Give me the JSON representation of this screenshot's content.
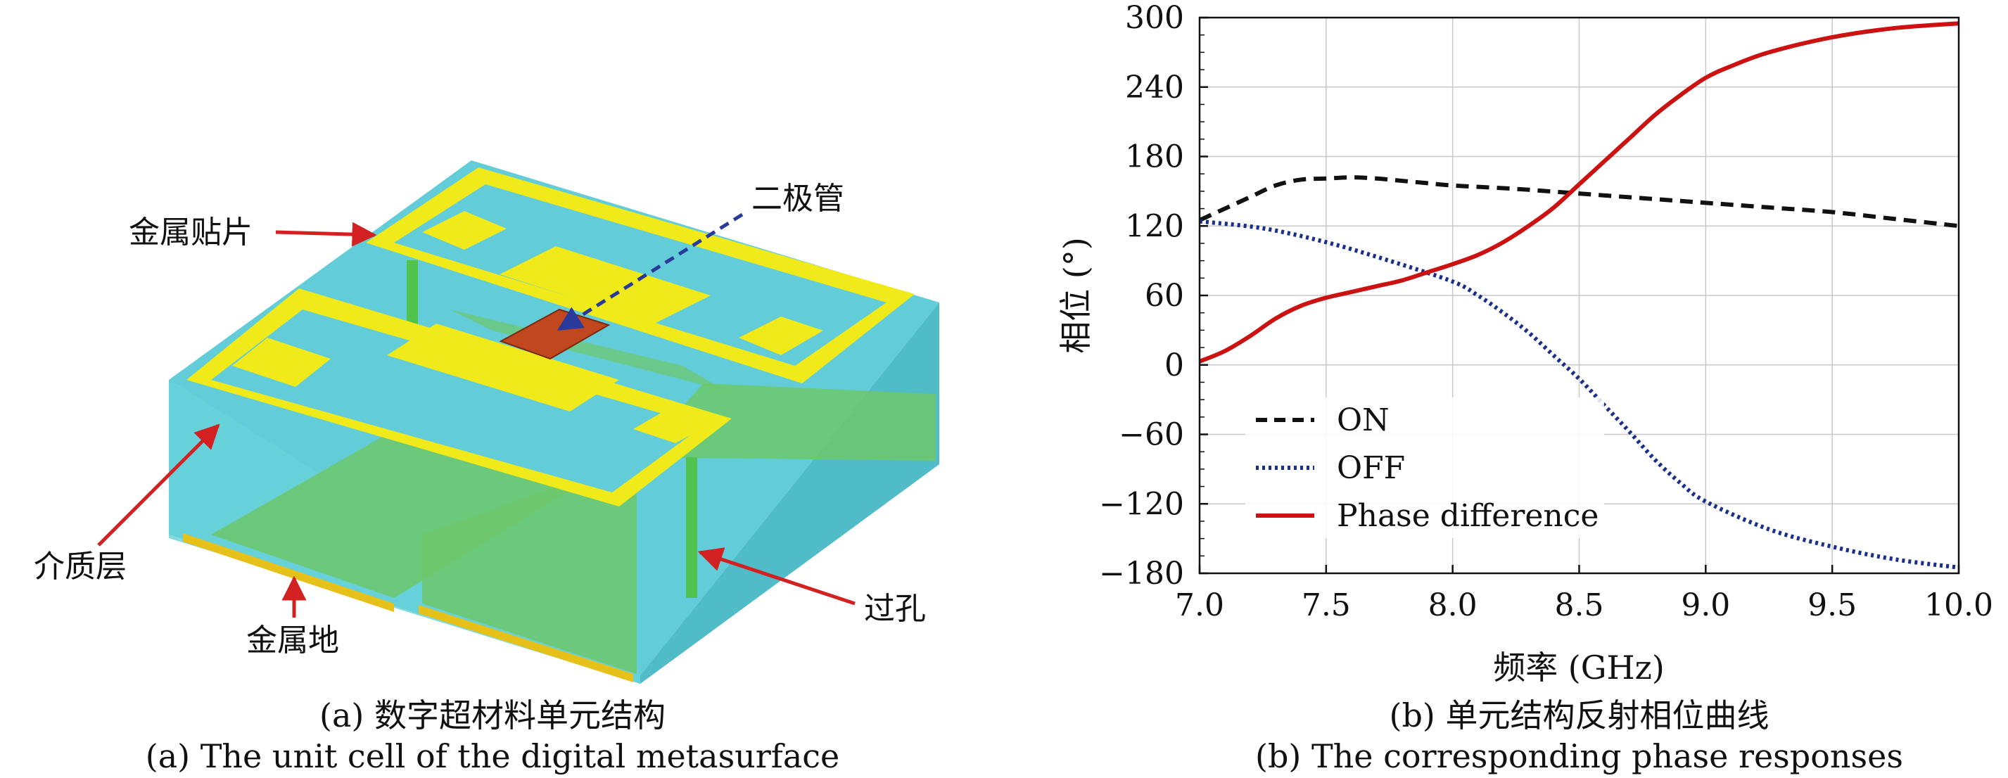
{
  "left_panel": {
    "labels": {
      "patch": "金属贴片",
      "diode": "二极管",
      "substrate": "介质层",
      "ground": "金属地",
      "via": "过孔"
    },
    "caption_cn": "(a) 数字超材料单元结构",
    "caption_en": "(a) The unit cell of the digital metasurface"
  },
  "right_panel": {
    "caption_cn": "(b) 单元结构反射相位曲线",
    "caption_en": "(b) The corresponding phase responses"
  },
  "chart_data": {
    "type": "line",
    "xlabel": "频率 (GHz)",
    "ylabel": "相位 (°)",
    "xlim": [
      7.0,
      10.0
    ],
    "ylim": [
      -180,
      300
    ],
    "xticks": [
      7.0,
      7.5,
      8.0,
      8.5,
      9.0,
      9.5,
      10.0
    ],
    "yticks": [
      -180,
      -120,
      -60,
      0,
      60,
      120,
      180,
      240,
      300
    ],
    "xtick_labels": [
      "7.0",
      "7.5",
      "8.0",
      "8.5",
      "9.0",
      "9.5",
      "10.0"
    ],
    "ytick_labels": [
      "−180",
      "−120",
      "−60",
      "0",
      "60",
      "120",
      "180",
      "240",
      "300"
    ],
    "grid": true,
    "legend_position": "bottom-left",
    "series": [
      {
        "name": "ON",
        "color": "#111111",
        "style": "dashed",
        "x": [
          7.0,
          7.1,
          7.2,
          7.3,
          7.4,
          7.5,
          7.6,
          7.7,
          7.8,
          7.9,
          8.0,
          8.25,
          8.5,
          8.75,
          9.0,
          9.25,
          9.5,
          9.75,
          10.0
        ],
        "y": [
          125,
          135,
          145,
          155,
          160,
          161,
          162,
          161,
          159,
          157,
          155,
          152,
          148,
          144,
          140,
          136,
          132,
          126,
          120
        ]
      },
      {
        "name": "OFF",
        "color": "#1a2f8a",
        "style": "dotted",
        "x": [
          7.0,
          7.25,
          7.5,
          7.75,
          8.0,
          8.1,
          8.2,
          8.3,
          8.4,
          8.5,
          8.6,
          8.7,
          8.8,
          8.9,
          9.0,
          9.25,
          9.5,
          9.75,
          10.0
        ],
        "y": [
          124,
          118,
          106,
          90,
          72,
          60,
          45,
          28,
          8,
          -12,
          -35,
          -58,
          -82,
          -102,
          -118,
          -142,
          -157,
          -168,
          -175
        ]
      },
      {
        "name": "Phase difference",
        "color": "#cc1111",
        "style": "solid",
        "x": [
          7.0,
          7.1,
          7.2,
          7.3,
          7.4,
          7.5,
          7.6,
          7.7,
          7.8,
          7.9,
          8.0,
          8.1,
          8.2,
          8.3,
          8.4,
          8.5,
          8.6,
          8.7,
          8.8,
          8.9,
          9.0,
          9.1,
          9.25,
          9.5,
          9.75,
          10.0
        ],
        "y": [
          3,
          12,
          25,
          40,
          51,
          58,
          63,
          68,
          73,
          80,
          87,
          95,
          106,
          120,
          136,
          156,
          176,
          196,
          216,
          233,
          248,
          258,
          270,
          283,
          291,
          295
        ]
      }
    ]
  }
}
